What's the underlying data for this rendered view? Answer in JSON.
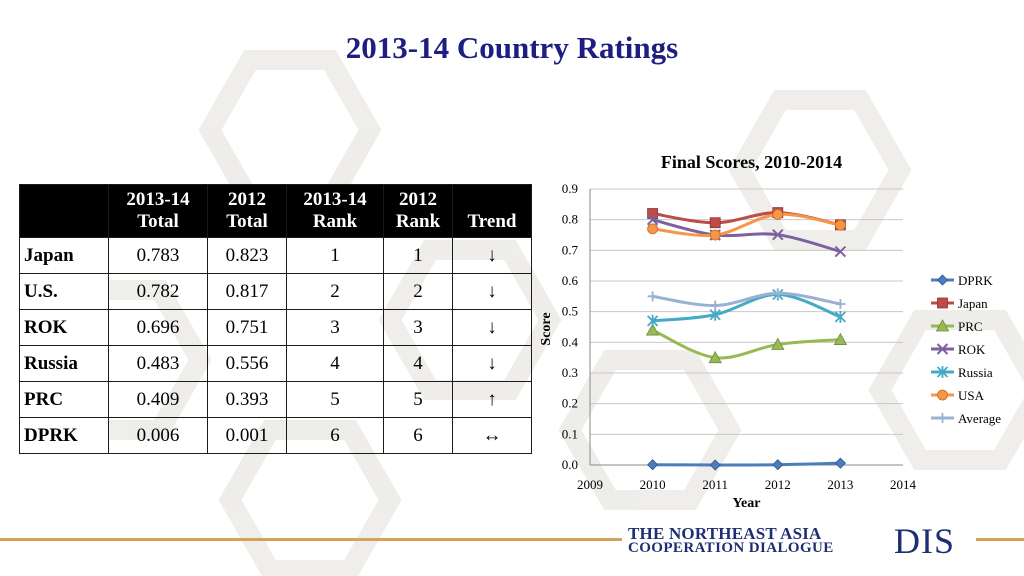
{
  "title": "2013-14 Country Ratings",
  "table": {
    "headers": [
      "",
      "2013-14 Total",
      "2012 Total",
      "2013-14 Rank",
      "2012 Rank",
      "Trend"
    ],
    "rows": [
      {
        "country": "Japan",
        "total_1314": "0.783",
        "total_2012": "0.823",
        "rank_1314": "1",
        "rank_2012": "1",
        "trend": "↓"
      },
      {
        "country": "U.S.",
        "total_1314": "0.782",
        "total_2012": "0.817",
        "rank_1314": "2",
        "rank_2012": "2",
        "trend": "↓"
      },
      {
        "country": "ROK",
        "total_1314": "0.696",
        "total_2012": "0.751",
        "rank_1314": "3",
        "rank_2012": "3",
        "trend": "↓"
      },
      {
        "country": "Russia",
        "total_1314": "0.483",
        "total_2012": "0.556",
        "rank_1314": "4",
        "rank_2012": "4",
        "trend": "↓"
      },
      {
        "country": "PRC",
        "total_1314": "0.409",
        "total_2012": "0.393",
        "rank_1314": "5",
        "rank_2012": "5",
        "trend": "↑"
      },
      {
        "country": "DPRK",
        "total_1314": "0.006",
        "total_2012": "0.001",
        "rank_1314": "6",
        "rank_2012": "6",
        "trend": "↔"
      }
    ]
  },
  "chart_data": {
    "type": "line",
    "title": "Final Scores, 2010-2014",
    "xlabel": "Year",
    "ylabel": "Score",
    "x": [
      2010,
      2011,
      2012,
      2013
    ],
    "xlim": [
      2009,
      2014
    ],
    "ylim": [
      0,
      0.9
    ],
    "x_ticks": [
      "2009",
      "2010",
      "2011",
      "2012",
      "2013",
      "2014"
    ],
    "y_ticks": [
      "0.0",
      "0.1",
      "0.2",
      "0.3",
      "0.4",
      "0.5",
      "0.6",
      "0.7",
      "0.8",
      "0.9"
    ],
    "grid": true,
    "legend_position": "right",
    "series": [
      {
        "name": "DPRK",
        "color": "#4a7ebb",
        "marker": "diamond",
        "values": [
          0.001,
          0.0,
          0.001,
          0.006
        ]
      },
      {
        "name": "Japan",
        "color": "#be4b48",
        "marker": "square",
        "values": [
          0.82,
          0.79,
          0.823,
          0.783
        ]
      },
      {
        "name": "PRC",
        "color": "#98b954",
        "marker": "triangle",
        "values": [
          0.44,
          0.35,
          0.393,
          0.409
        ]
      },
      {
        "name": "ROK",
        "color": "#7d60a0",
        "marker": "x",
        "values": [
          0.8,
          0.75,
          0.751,
          0.696
        ]
      },
      {
        "name": "Russia",
        "color": "#46aac5",
        "marker": "star",
        "values": [
          0.47,
          0.49,
          0.556,
          0.483
        ]
      },
      {
        "name": "USA",
        "color": "#f79646",
        "marker": "circle",
        "values": [
          0.77,
          0.75,
          0.817,
          0.782
        ]
      },
      {
        "name": "Average",
        "color": "#9bb1d4",
        "marker": "plus",
        "values": [
          0.55,
          0.52,
          0.56,
          0.525
        ]
      }
    ]
  },
  "footer": {
    "org_line1": "THE NORTHEAST ASIA",
    "org_line2": "COOPERATION DIALOGUE",
    "abbr": "DIS"
  },
  "colors": {
    "title": "#1d1d82",
    "logo": "#1d2e72",
    "header_bg": "#000000"
  }
}
